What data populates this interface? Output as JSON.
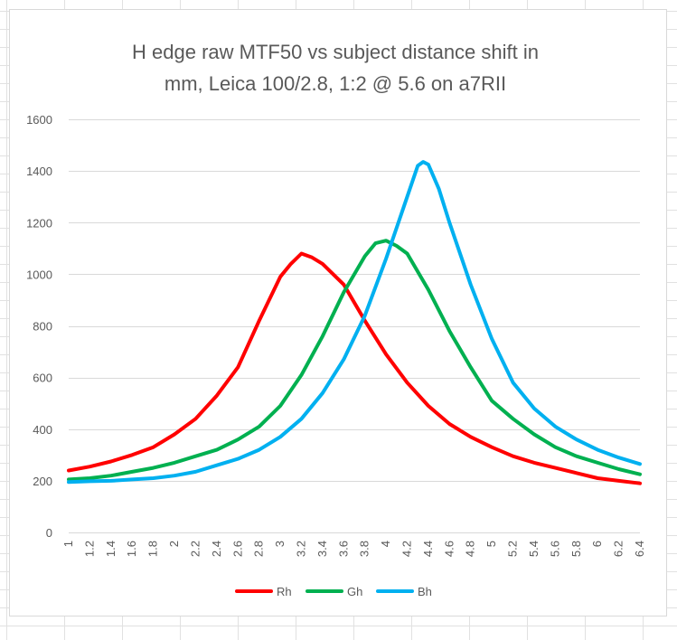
{
  "chart_data": {
    "type": "line",
    "title_lines": [
      "H edge raw MTF50 vs subject distance shift in",
      "mm, Leica 100/2.8, 1:2 @ 5.6 on a7RII"
    ],
    "xlabel": "",
    "ylabel": "",
    "xlim": [
      1,
      6.4
    ],
    "ylim": [
      0,
      1600
    ],
    "y_ticks": [
      0,
      200,
      400,
      600,
      800,
      1000,
      1200,
      1400,
      1600
    ],
    "x_tick_labels": [
      "1",
      "1.2",
      "1.4",
      "1.6",
      "1.8",
      "2",
      "2.2",
      "2.4",
      "2.6",
      "2.8",
      "3",
      "3.2",
      "3.4",
      "3.6",
      "3.8",
      "4",
      "4.2",
      "4.4",
      "4.6",
      "4.8",
      "5",
      "5.2",
      "5.4",
      "5.6",
      "5.8",
      "6",
      "6.2",
      "6.4"
    ],
    "grid": true,
    "legend_position": "bottom",
    "series": [
      {
        "name": "Rh",
        "color": "#ff0000",
        "x": [
          1.0,
          1.2,
          1.4,
          1.6,
          1.8,
          2.0,
          2.2,
          2.4,
          2.6,
          2.8,
          3.0,
          3.1,
          3.2,
          3.3,
          3.4,
          3.6,
          3.8,
          4.0,
          4.2,
          4.4,
          4.6,
          4.8,
          5.0,
          5.2,
          5.4,
          5.6,
          5.8,
          6.0,
          6.2,
          6.4
        ],
        "values": [
          240,
          255,
          275,
          300,
          330,
          380,
          440,
          530,
          640,
          820,
          990,
          1040,
          1080,
          1065,
          1040,
          960,
          820,
          690,
          580,
          490,
          420,
          370,
          330,
          295,
          270,
          250,
          230,
          210,
          200,
          190
        ]
      },
      {
        "name": "Gh",
        "color": "#00b050",
        "x": [
          1.0,
          1.2,
          1.4,
          1.6,
          1.8,
          2.0,
          2.2,
          2.4,
          2.6,
          2.8,
          3.0,
          3.2,
          3.4,
          3.6,
          3.8,
          3.9,
          4.0,
          4.1,
          4.2,
          4.4,
          4.6,
          4.8,
          5.0,
          5.2,
          5.4,
          5.6,
          5.8,
          6.0,
          6.2,
          6.4
        ],
        "values": [
          205,
          210,
          220,
          235,
          250,
          270,
          295,
          320,
          360,
          410,
          490,
          610,
          760,
          930,
          1070,
          1120,
          1130,
          1110,
          1080,
          940,
          780,
          640,
          510,
          440,
          380,
          330,
          295,
          270,
          245,
          225
        ]
      },
      {
        "name": "Bh",
        "color": "#00b0f0",
        "x": [
          1.0,
          1.2,
          1.4,
          1.6,
          1.8,
          2.0,
          2.2,
          2.4,
          2.6,
          2.8,
          3.0,
          3.2,
          3.4,
          3.6,
          3.8,
          4.0,
          4.1,
          4.2,
          4.3,
          4.35,
          4.4,
          4.5,
          4.6,
          4.8,
          5.0,
          5.2,
          5.4,
          5.6,
          5.8,
          6.0,
          6.2,
          6.4
        ],
        "values": [
          195,
          198,
          200,
          205,
          210,
          220,
          235,
          260,
          285,
          320,
          370,
          440,
          540,
          670,
          840,
          1060,
          1180,
          1300,
          1420,
          1435,
          1425,
          1330,
          1200,
          960,
          750,
          580,
          480,
          410,
          360,
          320,
          290,
          265
        ]
      }
    ]
  }
}
